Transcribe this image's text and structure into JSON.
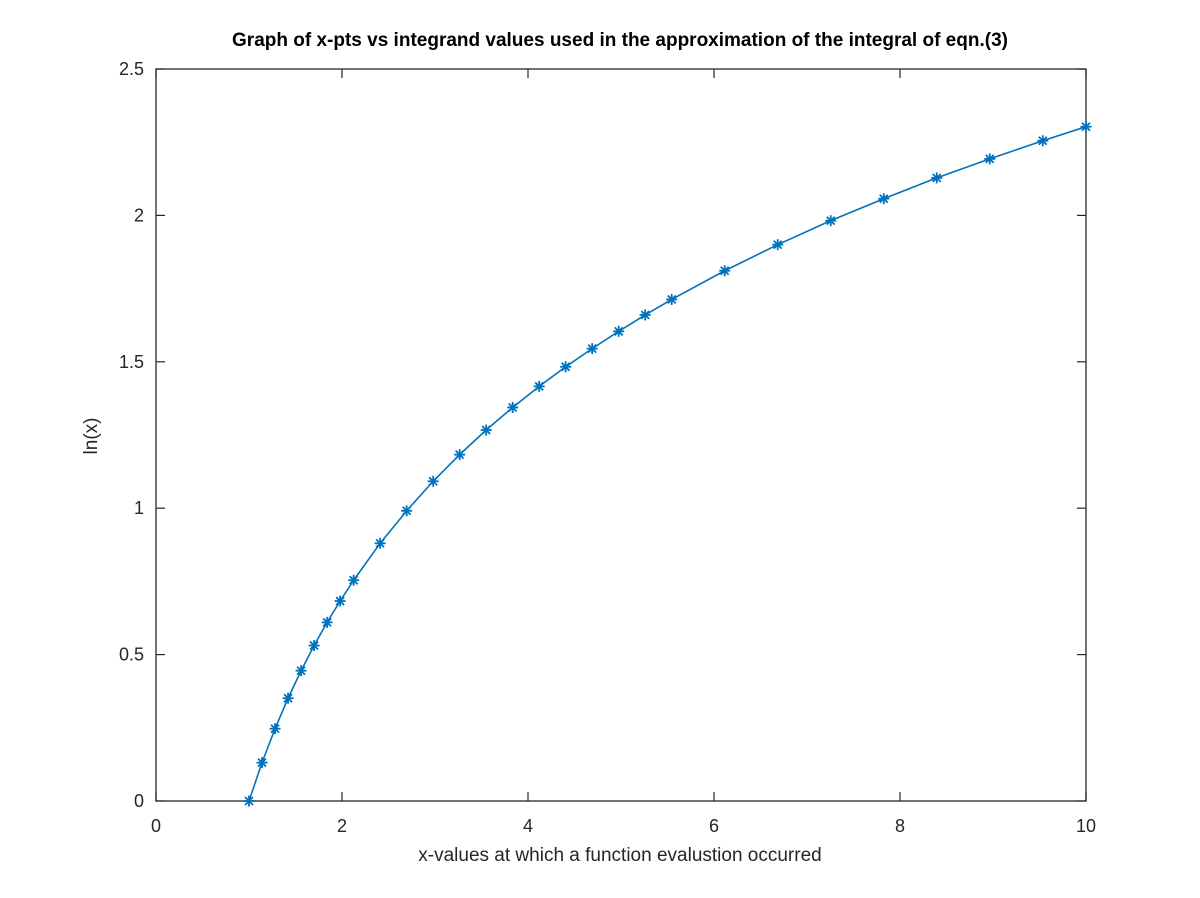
{
  "chart_data": {
    "type": "line",
    "title": "Graph of x-pts vs integrand values used in the approximation of the integral of eqn.(3)",
    "xlabel": "x-values at which a function evalustion occurred",
    "ylabel": "ln(x)",
    "xlim": [
      0,
      10
    ],
    "ylim": [
      0,
      2.5
    ],
    "xticks": [
      "0",
      "2",
      "4",
      "6",
      "8",
      "10"
    ],
    "yticks": [
      "0",
      "0.5",
      "1",
      "1.5",
      "2",
      "2.5"
    ],
    "grid": false,
    "series": [
      {
        "marker": "asterisk",
        "color": "#0072bd",
        "x": [
          1.0,
          1.14,
          1.28,
          1.42,
          1.56,
          1.7,
          1.84,
          1.98,
          2.125,
          2.41,
          2.695,
          2.98,
          3.265,
          3.55,
          3.835,
          4.12,
          4.405,
          4.69,
          4.975,
          5.26,
          5.545,
          6.115,
          6.685,
          7.255,
          7.825,
          8.395,
          8.965,
          9.535,
          10.0
        ],
        "y": [
          0.0,
          0.131,
          0.247,
          0.351,
          0.445,
          0.531,
          0.61,
          0.683,
          0.754,
          0.88,
          0.991,
          1.092,
          1.183,
          1.267,
          1.344,
          1.416,
          1.483,
          1.545,
          1.604,
          1.66,
          1.713,
          1.811,
          1.9,
          1.982,
          2.057,
          2.128,
          2.193,
          2.255,
          2.303
        ]
      }
    ]
  }
}
